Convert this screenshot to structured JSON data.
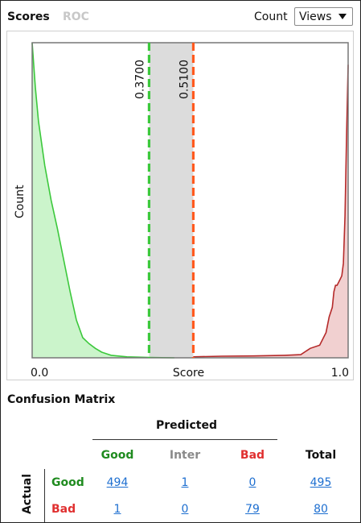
{
  "tabs": {
    "scores": "Scores",
    "roc": "ROC"
  },
  "toolbar": {
    "count_label": "Count",
    "views_label": "Views"
  },
  "colors": {
    "good": "#1f8b1f",
    "inter": "#8a8a8a",
    "bad": "#e03030",
    "green_line": "#3cc83c",
    "orange_line": "#ff5a1f",
    "link": "#1e6fd0"
  },
  "chart_data": {
    "type": "area",
    "xlabel": "Score",
    "ylabel": "Count",
    "xlim": [
      0.0,
      1.0
    ],
    "x_tick_labels": [
      "0.0",
      "1.0"
    ],
    "grid": false,
    "thresholds": [
      {
        "value": 0.37,
        "label": "0.3700"
      },
      {
        "value": 0.51,
        "label": "0.5100"
      }
    ],
    "series": [
      {
        "x": [
          0.0,
          0.01,
          0.02,
          0.04,
          0.06,
          0.08,
          0.1,
          0.12,
          0.14,
          0.16,
          0.18,
          0.2,
          0.22,
          0.25,
          0.3,
          0.37,
          0.45
        ],
        "y": [
          1.0,
          0.86,
          0.75,
          0.61,
          0.5,
          0.41,
          0.31,
          0.21,
          0.12,
          0.064,
          0.045,
          0.03,
          0.018,
          0.008,
          0.003,
          0.001,
          0.0
        ]
      },
      {
        "x": [
          0.51,
          0.6,
          0.7,
          0.8,
          0.85,
          0.88,
          0.91,
          0.93,
          0.94,
          0.95,
          0.955,
          0.96,
          0.965,
          0.97,
          0.975,
          0.98,
          0.985,
          0.99,
          0.995,
          1.0
        ],
        "y": [
          0.003,
          0.005,
          0.006,
          0.008,
          0.01,
          0.03,
          0.04,
          0.08,
          0.13,
          0.16,
          0.21,
          0.23,
          0.23,
          0.24,
          0.25,
          0.26,
          0.3,
          0.45,
          0.7,
          0.93
        ]
      }
    ]
  },
  "confusion": {
    "title": "Confusion Matrix",
    "predicted_label": "Predicted",
    "actual_label": "Actual",
    "columns": [
      "Good",
      "Inter",
      "Bad",
      "Total"
    ],
    "rows": [
      {
        "label": "Good",
        "values": [
          "494",
          "1",
          "0",
          "495"
        ]
      },
      {
        "label": "Bad",
        "values": [
          "1",
          "0",
          "79",
          "80"
        ]
      }
    ]
  }
}
